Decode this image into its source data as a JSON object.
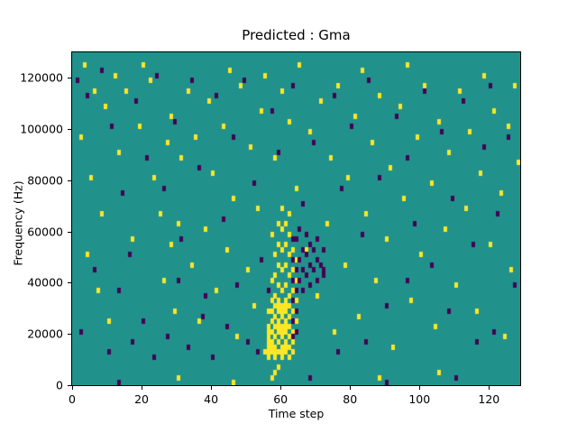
{
  "chart_data": {
    "type": "heatmap",
    "title": "Predicted : Gma",
    "xlabel": "Time step",
    "ylabel": "Frequency (Hz)",
    "x_range": [
      0,
      129
    ],
    "y_range": [
      0,
      130000
    ],
    "freq_bins": 65,
    "bin_hz": 2000,
    "x_ticks": [
      0,
      20,
      40,
      60,
      80,
      100,
      120
    ],
    "y_ticks": [
      0,
      20000,
      40000,
      60000,
      80000,
      100000,
      120000
    ],
    "legend": "none",
    "grid": false,
    "colors": {
      "background": "#21918c",
      "yellow": "#fde725",
      "dark": "#440154",
      "axis": "#000000"
    },
    "cells": {
      "yellow": [
        [
          3,
          62
        ],
        [
          6,
          57
        ],
        [
          9,
          54
        ],
        [
          12,
          60
        ],
        [
          2,
          48
        ],
        [
          5,
          40
        ],
        [
          8,
          33
        ],
        [
          4,
          25
        ],
        [
          7,
          18
        ],
        [
          10,
          12
        ],
        [
          13,
          45
        ],
        [
          15,
          57
        ],
        [
          17,
          28
        ],
        [
          19,
          50
        ],
        [
          20,
          62
        ],
        [
          22,
          59
        ],
        [
          23,
          40
        ],
        [
          25,
          33
        ],
        [
          26,
          20
        ],
        [
          27,
          47
        ],
        [
          28,
          52
        ],
        [
          28,
          27
        ],
        [
          29,
          14
        ],
        [
          30,
          31
        ],
        [
          31,
          44
        ],
        [
          33,
          57
        ],
        [
          34,
          23
        ],
        [
          35,
          48
        ],
        [
          36,
          12
        ],
        [
          38,
          30
        ],
        [
          39,
          55
        ],
        [
          40,
          41
        ],
        [
          41,
          18
        ],
        [
          43,
          50
        ],
        [
          44,
          26
        ],
        [
          45,
          61
        ],
        [
          46,
          36
        ],
        [
          47,
          9
        ],
        [
          48,
          58
        ],
        [
          50,
          22
        ],
        [
          51,
          46
        ],
        [
          52,
          15
        ],
        [
          53,
          34
        ],
        [
          54,
          53
        ],
        [
          55,
          60
        ],
        [
          56,
          8
        ],
        [
          57,
          29
        ],
        [
          58,
          44
        ],
        [
          60,
          57
        ],
        [
          62,
          51
        ],
        [
          64,
          38
        ],
        [
          65,
          62
        ],
        [
          67,
          26
        ],
        [
          68,
          49
        ],
        [
          70,
          17
        ],
        [
          71,
          55
        ],
        [
          73,
          31
        ],
        [
          74,
          44
        ],
        [
          75,
          10
        ],
        [
          76,
          58
        ],
        [
          78,
          23
        ],
        [
          79,
          40
        ],
        [
          81,
          52
        ],
        [
          82,
          13
        ],
        [
          83,
          61
        ],
        [
          84,
          33
        ],
        [
          86,
          47
        ],
        [
          87,
          20
        ],
        [
          88,
          56
        ],
        [
          90,
          28
        ],
        [
          91,
          42
        ],
        [
          92,
          7
        ],
        [
          94,
          54
        ],
        [
          95,
          36
        ],
        [
          96,
          62
        ],
        [
          97,
          16
        ],
        [
          99,
          48
        ],
        [
          100,
          25
        ],
        [
          101,
          58
        ],
        [
          103,
          39
        ],
        [
          104,
          11
        ],
        [
          105,
          51
        ],
        [
          107,
          30
        ],
        [
          108,
          45
        ],
        [
          110,
          19
        ],
        [
          111,
          57
        ],
        [
          113,
          34
        ],
        [
          114,
          49
        ],
        [
          116,
          14
        ],
        [
          117,
          41
        ],
        [
          118,
          60
        ],
        [
          120,
          27
        ],
        [
          121,
          53
        ],
        [
          123,
          37
        ],
        [
          124,
          9
        ],
        [
          125,
          50
        ],
        [
          126,
          22
        ],
        [
          127,
          58
        ],
        [
          128,
          43
        ],
        [
          30,
          1
        ],
        [
          46,
          0
        ],
        [
          57,
          1
        ],
        [
          58,
          2
        ],
        [
          59,
          3
        ],
        [
          88,
          1
        ],
        [
          105,
          2
        ],
        [
          56,
          6
        ],
        [
          56,
          10
        ],
        [
          56,
          14
        ],
        [
          57,
          7
        ],
        [
          57,
          12
        ],
        [
          57,
          16
        ],
        [
          57,
          20
        ],
        [
          58,
          6
        ],
        [
          58,
          9
        ],
        [
          58,
          13
        ],
        [
          58,
          17
        ],
        [
          58,
          21
        ],
        [
          58,
          25
        ],
        [
          59,
          8
        ],
        [
          59,
          11
        ],
        [
          59,
          15
        ],
        [
          59,
          19
        ],
        [
          59,
          23
        ],
        [
          59,
          27
        ],
        [
          59,
          31
        ],
        [
          60,
          6
        ],
        [
          60,
          10
        ],
        [
          60,
          14
        ],
        [
          60,
          18
        ],
        [
          60,
          22
        ],
        [
          60,
          26
        ],
        [
          60,
          30
        ],
        [
          60,
          34
        ],
        [
          61,
          7
        ],
        [
          61,
          11
        ],
        [
          61,
          15
        ],
        [
          61,
          19
        ],
        [
          61,
          23
        ],
        [
          61,
          27
        ],
        [
          61,
          31
        ],
        [
          62,
          9
        ],
        [
          62,
          13
        ],
        [
          62,
          17
        ],
        [
          62,
          21
        ],
        [
          62,
          25
        ],
        [
          62,
          29
        ],
        [
          62,
          33
        ],
        [
          63,
          10
        ],
        [
          63,
          14
        ],
        [
          63,
          18
        ],
        [
          63,
          22
        ],
        [
          63,
          26
        ],
        [
          64,
          12
        ],
        [
          64,
          16
        ],
        [
          64,
          20
        ],
        [
          64,
          24
        ],
        [
          55,
          6
        ],
        [
          56,
          5
        ],
        [
          56,
          7
        ],
        [
          56,
          9
        ],
        [
          56,
          11
        ],
        [
          57,
          6
        ],
        [
          57,
          8
        ],
        [
          57,
          10
        ],
        [
          57,
          14
        ],
        [
          58,
          5
        ],
        [
          58,
          7
        ],
        [
          58,
          11
        ],
        [
          58,
          15
        ],
        [
          59,
          6
        ],
        [
          59,
          10
        ],
        [
          59,
          12
        ],
        [
          59,
          14
        ],
        [
          59,
          16
        ],
        [
          60,
          5
        ],
        [
          60,
          7
        ],
        [
          60,
          9
        ],
        [
          60,
          11
        ],
        [
          60,
          13
        ],
        [
          60,
          15
        ],
        [
          61,
          6
        ],
        [
          61,
          8
        ],
        [
          61,
          10
        ],
        [
          61,
          12
        ],
        [
          61,
          14
        ],
        [
          61,
          16
        ],
        [
          62,
          5
        ],
        [
          62,
          7
        ],
        [
          62,
          11
        ],
        [
          62,
          15
        ],
        [
          63,
          6
        ],
        [
          63,
          8
        ]
      ],
      "dark": [
        [
          1,
          59
        ],
        [
          4,
          56
        ],
        [
          8,
          61
        ],
        [
          11,
          50
        ],
        [
          14,
          37
        ],
        [
          16,
          25
        ],
        [
          18,
          55
        ],
        [
          21,
          44
        ],
        [
          24,
          60
        ],
        [
          26,
          38
        ],
        [
          29,
          51
        ],
        [
          31,
          28
        ],
        [
          34,
          59
        ],
        [
          36,
          42
        ],
        [
          38,
          17
        ],
        [
          41,
          56
        ],
        [
          43,
          32
        ],
        [
          46,
          48
        ],
        [
          49,
          59
        ],
        [
          52,
          39
        ],
        [
          54,
          24
        ],
        [
          57,
          53
        ],
        [
          59,
          45
        ],
        [
          63,
          58
        ],
        [
          66,
          35
        ],
        [
          69,
          47
        ],
        [
          72,
          21
        ],
        [
          75,
          56
        ],
        [
          77,
          38
        ],
        [
          80,
          50
        ],
        [
          83,
          29
        ],
        [
          85,
          59
        ],
        [
          88,
          40
        ],
        [
          90,
          15
        ],
        [
          93,
          52
        ],
        [
          96,
          44
        ],
        [
          98,
          31
        ],
        [
          101,
          57
        ],
        [
          103,
          23
        ],
        [
          106,
          49
        ],
        [
          109,
          36
        ],
        [
          112,
          55
        ],
        [
          115,
          27
        ],
        [
          118,
          46
        ],
        [
          120,
          58
        ],
        [
          122,
          33
        ],
        [
          125,
          48
        ],
        [
          127,
          19
        ],
        [
          2,
          10
        ],
        [
          6,
          22
        ],
        [
          10,
          6
        ],
        [
          13,
          18
        ],
        [
          17,
          8
        ],
        [
          20,
          12
        ],
        [
          23,
          5
        ],
        [
          27,
          9
        ],
        [
          30,
          20
        ],
        [
          33,
          7
        ],
        [
          37,
          13
        ],
        [
          40,
          5
        ],
        [
          44,
          11
        ],
        [
          47,
          19
        ],
        [
          50,
          8
        ],
        [
          53,
          6
        ],
        [
          56,
          18
        ],
        [
          13,
          0
        ],
        [
          68,
          1
        ],
        [
          90,
          0
        ],
        [
          110,
          1
        ],
        [
          116,
          8
        ],
        [
          121,
          10
        ],
        [
          96,
          20
        ],
        [
          108,
          14
        ],
        [
          84,
          8
        ],
        [
          76,
          6
        ],
        [
          63,
          9
        ],
        [
          63,
          12
        ],
        [
          63,
          16
        ],
        [
          63,
          20
        ],
        [
          63,
          24
        ],
        [
          63,
          28
        ],
        [
          64,
          10
        ],
        [
          64,
          14
        ],
        [
          64,
          18
        ],
        [
          64,
          22
        ],
        [
          64,
          28
        ],
        [
          65,
          20
        ],
        [
          65,
          24
        ],
        [
          65,
          30
        ],
        [
          66,
          18
        ],
        [
          66,
          22
        ],
        [
          66,
          26
        ],
        [
          67,
          21
        ],
        [
          67,
          25
        ],
        [
          67,
          29
        ],
        [
          68,
          19
        ],
        [
          68,
          23
        ],
        [
          68,
          27
        ],
        [
          69,
          22
        ],
        [
          69,
          26
        ],
        [
          70,
          20
        ],
        [
          70,
          24
        ],
        [
          70,
          28
        ],
        [
          71,
          23
        ],
        [
          72,
          26
        ],
        [
          72,
          22
        ]
      ]
    }
  }
}
